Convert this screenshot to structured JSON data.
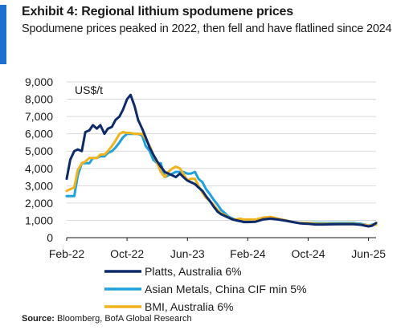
{
  "header": {
    "title": "Exhibit 4: Regional lithium spodumene prices",
    "subtitle": "Spodumene prices peaked in 2022, then fell and have flatlined since 2024"
  },
  "footer": {
    "source_label": "Source:",
    "source_text": "Bloomberg, BofA Global Research"
  },
  "colors": {
    "accent": "#1f6fd1",
    "platts": "#0d2a6b",
    "asian_metals": "#1ea1dc",
    "bmi": "#f1b21c",
    "grid": "#d9d9d9"
  },
  "chart_data": {
    "type": "line",
    "title": "",
    "xlabel": "",
    "ylabel": "",
    "unit_label": "US$/t",
    "ylim": [
      0,
      9000
    ],
    "y_ticks": [
      0,
      1000,
      2000,
      3000,
      4000,
      5000,
      6000,
      7000,
      8000,
      9000
    ],
    "y_tick_labels": [
      "0",
      "1,000",
      "2,000",
      "3,000",
      "4,000",
      "5,000",
      "6,000",
      "7,000",
      "8,000",
      "9,000"
    ],
    "xlim": [
      "2022-02",
      "2025-07"
    ],
    "x_ticks": [
      "2022-02",
      "2022-10",
      "2023-06",
      "2024-02",
      "2024-10",
      "2025-06"
    ],
    "x_tick_labels": [
      "Feb-22",
      "Oct-22",
      "Jun-23",
      "Feb-24",
      "Oct-24",
      "Jun-25"
    ],
    "grid": "horizontal",
    "legend_position": "bottom",
    "series": [
      {
        "name": "Platts, Australia 6%",
        "color": "#0d2a6b",
        "x": [
          "2022-02",
          "2022-02-15",
          "2022-03",
          "2022-03-15",
          "2022-04",
          "2022-04-15",
          "2022-05",
          "2022-05-15",
          "2022-06",
          "2022-06-15",
          "2022-07",
          "2022-07-15",
          "2022-08",
          "2022-08-15",
          "2022-09",
          "2022-09-15",
          "2022-10",
          "2022-10-15",
          "2022-11",
          "2022-11-15",
          "2022-12",
          "2022-12-15",
          "2023-01",
          "2023-01-15",
          "2023-02",
          "2023-02-15",
          "2023-03",
          "2023-03-15",
          "2023-04",
          "2023-04-15",
          "2023-05",
          "2023-05-15",
          "2023-06",
          "2023-06-15",
          "2023-07",
          "2023-07-15",
          "2023-08",
          "2023-08-15",
          "2023-09",
          "2023-09-15",
          "2023-10",
          "2023-10-15",
          "2023-11",
          "2023-11-15",
          "2023-12",
          "2023-12-15",
          "2024-01",
          "2024-01-15",
          "2024-02",
          "2024-03",
          "2024-04",
          "2024-05",
          "2024-06",
          "2024-07",
          "2024-08",
          "2024-09",
          "2024-10",
          "2024-11",
          "2024-12",
          "2025-01",
          "2025-02",
          "2025-03",
          "2025-04",
          "2025-05",
          "2025-06",
          "2025-06-15",
          "2025-07"
        ],
        "values": [
          3400,
          4500,
          5000,
          5100,
          5000,
          6100,
          6200,
          6500,
          6300,
          6500,
          6000,
          6300,
          6400,
          6800,
          7000,
          7400,
          8000,
          8250,
          7600,
          6800,
          6300,
          5800,
          5200,
          4800,
          4400,
          4100,
          3800,
          3700,
          3600,
          3500,
          3700,
          3500,
          3300,
          3200,
          3100,
          2900,
          2700,
          2400,
          2100,
          1800,
          1500,
          1350,
          1250,
          1150,
          1050,
          1000,
          950,
          900,
          900,
          920,
          1050,
          1100,
          1050,
          980,
          900,
          820,
          800,
          760,
          760,
          770,
          780,
          780,
          780,
          740,
          650,
          690,
          850
        ]
      },
      {
        "name": "Asian Metals, China CIF min 5%",
        "color": "#1ea1dc",
        "x": [
          "2022-02",
          "2022-02-15",
          "2022-03",
          "2022-03-15",
          "2022-04",
          "2022-04-15",
          "2022-05",
          "2022-05-15",
          "2022-06",
          "2022-06-15",
          "2022-07",
          "2022-07-15",
          "2022-08",
          "2022-08-15",
          "2022-09",
          "2022-09-15",
          "2022-10",
          "2022-10-15",
          "2022-11",
          "2022-11-15",
          "2022-12",
          "2022-12-15",
          "2023-01",
          "2023-01-15",
          "2023-02",
          "2023-02-15",
          "2023-03",
          "2023-03-15",
          "2023-04",
          "2023-04-15",
          "2023-05",
          "2023-05-15",
          "2023-06",
          "2023-06-15",
          "2023-07",
          "2023-07-15",
          "2023-08",
          "2023-08-15",
          "2023-09",
          "2023-09-15",
          "2023-10",
          "2023-10-15",
          "2023-11",
          "2023-11-15",
          "2023-12",
          "2023-12-15",
          "2024-01",
          "2024-01-15",
          "2024-02",
          "2024-03",
          "2024-04",
          "2024-05",
          "2024-06",
          "2024-07",
          "2024-08",
          "2024-09",
          "2024-10",
          "2024-11",
          "2024-12",
          "2025-01",
          "2025-02",
          "2025-03",
          "2025-04",
          "2025-05",
          "2025-06",
          "2025-06-15",
          "2025-07"
        ],
        "values": [
          2400,
          2400,
          2400,
          3600,
          4300,
          4300,
          4300,
          4600,
          4600,
          4700,
          4700,
          4900,
          5000,
          5200,
          5500,
          5800,
          6000,
          6000,
          6000,
          6000,
          5900,
          5300,
          5000,
          4500,
          4300,
          4300,
          3500,
          3600,
          3700,
          3800,
          3800,
          3800,
          3700,
          3700,
          3800,
          3400,
          3200,
          2800,
          2500,
          2200,
          1900,
          1600,
          1400,
          1200,
          1100,
          1000,
          950,
          950,
          950,
          950,
          1150,
          1150,
          1050,
          1000,
          900,
          850,
          850,
          850,
          850,
          850,
          850,
          850,
          850,
          800,
          700,
          750,
          780
        ]
      },
      {
        "name": "BMI, Australia 6%",
        "color": "#f1b21c",
        "x": [
          "2022-02",
          "2022-02-15",
          "2022-03",
          "2022-03-15",
          "2022-04",
          "2022-04-15",
          "2022-05",
          "2022-05-15",
          "2022-06",
          "2022-06-15",
          "2022-07",
          "2022-07-15",
          "2022-08",
          "2022-08-15",
          "2022-09",
          "2022-09-15",
          "2022-10",
          "2022-10-15",
          "2022-11",
          "2022-11-15",
          "2022-12",
          "2022-12-15",
          "2023-01",
          "2023-01-15",
          "2023-02",
          "2023-02-15",
          "2023-03",
          "2023-03-15",
          "2023-04",
          "2023-04-15",
          "2023-05",
          "2023-05-15",
          "2023-06",
          "2023-06-15",
          "2023-07",
          "2023-07-15",
          "2023-08",
          "2023-08-15",
          "2023-09",
          "2023-09-15",
          "2023-10",
          "2023-10-15",
          "2023-11",
          "2023-11-15",
          "2023-12",
          "2023-12-15",
          "2024-01",
          "2024-01-15",
          "2024-02",
          "2024-03",
          "2024-04",
          "2024-05",
          "2024-06",
          "2024-07",
          "2024-08",
          "2024-09",
          "2024-10",
          "2024-11",
          "2024-12",
          "2025-01",
          "2025-02",
          "2025-03",
          "2025-04",
          "2025-05",
          "2025-06",
          "2025-06-15",
          "2025-07"
        ],
        "values": [
          2700,
          2800,
          2900,
          3900,
          4300,
          4400,
          4600,
          4600,
          4600,
          4800,
          4800,
          5000,
          5300,
          5600,
          6000,
          6100,
          6050,
          6050,
          6000,
          6000,
          6000,
          5700,
          5300,
          4800,
          4300,
          3800,
          3500,
          3800,
          4000,
          4100,
          4000,
          3700,
          3300,
          3400,
          3400,
          3000,
          2600,
          2300,
          2100,
          1900,
          1600,
          1400,
          1300,
          1150,
          1050,
          1050,
          1100,
          1050,
          1050,
          1050,
          1150,
          1200,
          1100,
          1000,
          900,
          850,
          850,
          800,
          800,
          800,
          800,
          800,
          800,
          750,
          700,
          720,
          750
        ]
      }
    ]
  }
}
